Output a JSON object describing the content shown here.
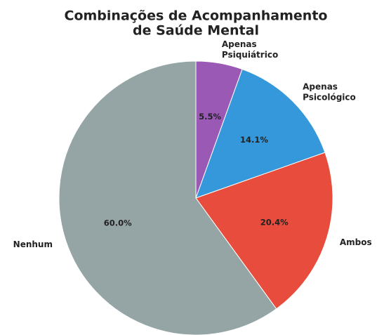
{
  "chart_data": {
    "type": "pie",
    "title": "Combinações de Acompanhamento\nde Saúde Mental",
    "categories": [
      "Apenas\nPsiquiátrico",
      "Apenas\nPsicológico",
      "Ambos",
      "Nenhum"
    ],
    "values": [
      5.5,
      14.1,
      20.4,
      60.0
    ],
    "value_labels": [
      "5.5%",
      "14.1%",
      "20.4%",
      "60.0%"
    ],
    "colors": [
      "#9b59b6",
      "#3498db",
      "#e74c3c",
      "#95a5a6"
    ]
  }
}
